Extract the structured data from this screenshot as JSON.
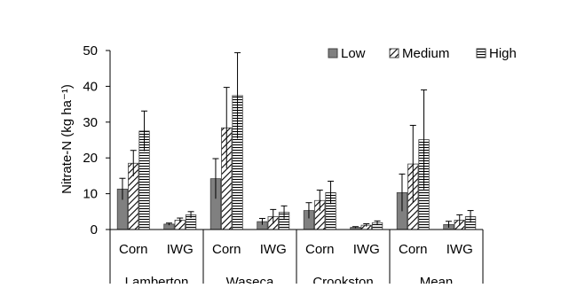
{
  "chart_data": {
    "type": "bar",
    "ylabel": "Nitrate-N (kg ha⁻¹)",
    "ylim": [
      0,
      50
    ],
    "yticks": [
      0,
      10,
      20,
      30,
      40,
      50
    ],
    "grid": false,
    "legend_position": "top-right",
    "groups": [
      "Lamberton",
      "Waseca",
      "Crookston",
      "Mean"
    ],
    "subcategories": [
      "Corn",
      "IWG"
    ],
    "categories": [
      "Lamberton Corn",
      "Lamberton IWG",
      "Waseca Corn",
      "Waseca IWG",
      "Crookston Corn",
      "Crookston IWG",
      "Mean Corn",
      "Mean IWG"
    ],
    "series": [
      {
        "name": "Low",
        "pattern": "solid-gray",
        "values": [
          11.3,
          1.5,
          14.2,
          2.2,
          5.3,
          0.6,
          10.3,
          1.4
        ],
        "errors": [
          3.0,
          0.3,
          5.6,
          0.9,
          2.2,
          0.2,
          5.2,
          0.9
        ]
      },
      {
        "name": "Medium",
        "pattern": "diagonal-hatch",
        "values": [
          18.5,
          2.6,
          28.4,
          3.6,
          8.1,
          1.2,
          18.3,
          2.6
        ],
        "errors": [
          3.6,
          0.6,
          11.3,
          2.0,
          2.9,
          0.4,
          10.8,
          1.5
        ]
      },
      {
        "name": "High",
        "pattern": "horizontal-hatch",
        "values": [
          27.5,
          4.1,
          37.4,
          4.8,
          10.3,
          1.9,
          25.1,
          3.6
        ],
        "errors": [
          5.6,
          0.9,
          12.0,
          1.8,
          3.2,
          0.5,
          13.9,
          1.7
        ]
      }
    ],
    "colors": {
      "bar_stroke": "#404040",
      "low_fill": "#808080",
      "hatch": "#000000",
      "axis": "#000000"
    }
  }
}
